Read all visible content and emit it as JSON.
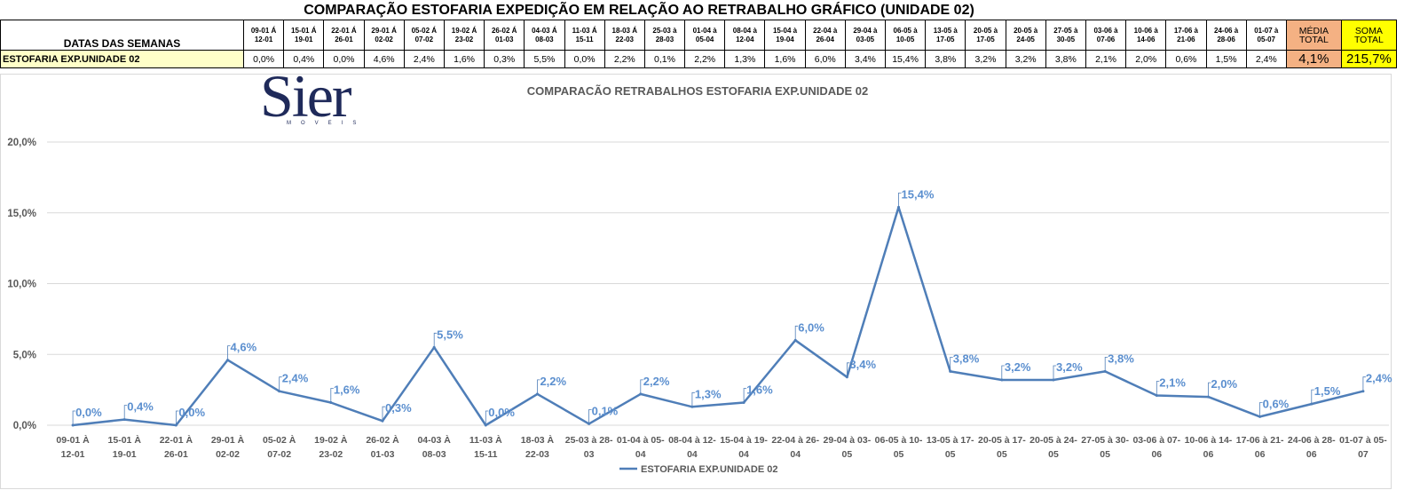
{
  "title": "COMPARAÇÃO ESTOFARIA EXPEDIÇÃO  EM RELAÇÃO AO RETRABALHO GRÁFICO (UNIDADE 02)",
  "table": {
    "row_title": "DATAS DAS SEMANAS",
    "row_label": "ESTOFARIA EXP.UNIDADE 02",
    "weeks": [
      [
        "09-01 Á",
        "12-01"
      ],
      [
        "15-01 Á",
        "19-01"
      ],
      [
        "22-01 Á",
        "26-01"
      ],
      [
        "29-01 Á",
        "02-02"
      ],
      [
        "05-02 Á",
        "07-02"
      ],
      [
        "19-02 Á",
        "23-02"
      ],
      [
        "26-02 Á",
        "01-03"
      ],
      [
        "04-03 Á",
        "08-03"
      ],
      [
        "11-03 Á",
        "15-11"
      ],
      [
        "18-03 Á",
        "22-03"
      ],
      [
        "25-03 à",
        "28-03"
      ],
      [
        "01-04 à",
        "05-04"
      ],
      [
        "08-04 à",
        "12-04"
      ],
      [
        "15-04 à",
        "19-04"
      ],
      [
        "22-04 à",
        "26-04"
      ],
      [
        "29-04 à",
        "03-05"
      ],
      [
        "06-05 à",
        "10-05"
      ],
      [
        "13-05 à",
        "17-05"
      ],
      [
        "20-05 à",
        "17-05"
      ],
      [
        "20-05 à",
        "24-05"
      ],
      [
        "27-05 à",
        "30-05"
      ],
      [
        "03-06 à",
        "07-06"
      ],
      [
        "10-06 à",
        "14-06"
      ],
      [
        "17-06 à",
        "21-06"
      ],
      [
        "24-06 à",
        "28-06"
      ],
      [
        "01-07 à",
        "05-07"
      ]
    ],
    "values": [
      "0,0%",
      "0,4%",
      "0,0%",
      "4,6%",
      "2,4%",
      "1,6%",
      "0,3%",
      "5,5%",
      "0,0%",
      "2,2%",
      "0,1%",
      "2,2%",
      "1,3%",
      "1,6%",
      "6,0%",
      "3,4%",
      "15,4%",
      "3,8%",
      "3,2%",
      "3,2%",
      "3,8%",
      "2,1%",
      "2,0%",
      "0,6%",
      "1,5%",
      "2,4%"
    ],
    "avg_header": [
      "MÉDIA",
      "TOTAL"
    ],
    "avg_value": "4,1%",
    "sum_header": [
      "SOMA",
      "TOTAL"
    ],
    "sum_value": "215,7%"
  },
  "logo": {
    "text": "Sier",
    "subtext": "MOVEIS"
  },
  "chart_data": {
    "type": "line",
    "title": "COMPARACÃO RETRABALHOS  ESTOFARIA EXP.UNIDADE 02",
    "categories": [
      [
        "09-01 À",
        "12-01"
      ],
      [
        "15-01 À",
        "19-01"
      ],
      [
        "22-01 À",
        "26-01"
      ],
      [
        "29-01 À",
        "02-02"
      ],
      [
        "05-02 À",
        "07-02"
      ],
      [
        "19-02 À",
        "23-02"
      ],
      [
        "26-02 À",
        "01-03"
      ],
      [
        "04-03 À",
        "08-03"
      ],
      [
        "11-03 À",
        "15-11"
      ],
      [
        "18-03 À",
        "22-03"
      ],
      [
        "25-03 à 28-",
        "03"
      ],
      [
        "01-04 à 05-",
        "04"
      ],
      [
        "08-04 à 12-",
        "04"
      ],
      [
        "15-04 à 19-",
        "04"
      ],
      [
        "22-04 à 26-",
        "04"
      ],
      [
        "29-04 à 03-",
        "05"
      ],
      [
        "06-05 à 10-",
        "05"
      ],
      [
        "13-05 à 17-",
        "05"
      ],
      [
        "20-05 à 17-",
        "05"
      ],
      [
        "20-05 à 24-",
        "05"
      ],
      [
        "27-05 à 30-",
        "05"
      ],
      [
        "03-06 à 07-",
        "06"
      ],
      [
        "10-06 à 14-",
        "06"
      ],
      [
        "17-06 à 21-",
        "06"
      ],
      [
        "24-06 à 28-",
        "06"
      ],
      [
        "01-07 à 05-",
        "07"
      ]
    ],
    "series": [
      {
        "name": "ESTOFARIA EXP.UNIDADE 02",
        "values": [
          0.0,
          0.4,
          0.0,
          4.6,
          2.4,
          1.6,
          0.3,
          5.5,
          0.0,
          2.2,
          0.1,
          2.2,
          1.3,
          1.6,
          6.0,
          3.4,
          15.4,
          3.8,
          3.2,
          3.2,
          3.8,
          2.1,
          2.0,
          0.6,
          1.5,
          2.4
        ],
        "labels": [
          "0,0%",
          "0,4%",
          "0,0%",
          "4,6%",
          "2,4%",
          "1,6%",
          "0,3%",
          "5,5%",
          "0,0%",
          "2,2%",
          "0,1%",
          "2,2%",
          "1,3%",
          "1,6%",
          "6,0%",
          "3,4%",
          "15,4%",
          "3,8%",
          "3,2%",
          "3,2%",
          "3,8%",
          "2,1%",
          "2,0%",
          "0,6%",
          "1,5%",
          "2,4%"
        ],
        "color": "#4f7eb8"
      }
    ],
    "ylim": [
      0,
      20
    ],
    "yticks": [
      0,
      5,
      10,
      15,
      20
    ],
    "ytick_labels": [
      "0,0%",
      "5,0%",
      "10,0%",
      "15,0%",
      "20,0%"
    ],
    "grid": true,
    "legend": "bottom",
    "label_color": "#5b8fcf",
    "axis_text_color": "#595959",
    "grid_color": "#d9d9d9"
  }
}
